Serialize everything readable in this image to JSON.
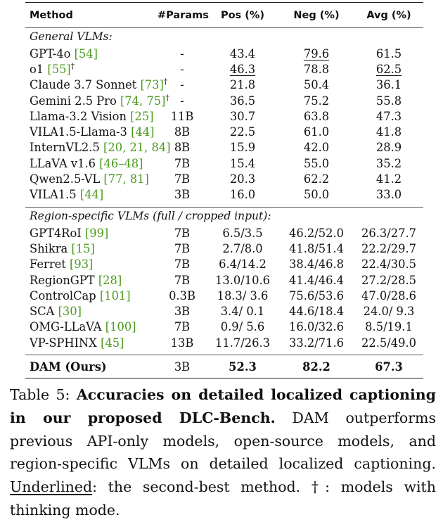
{
  "table": {
    "headers": [
      "Method",
      "#Params",
      "Pos (%)",
      "Neg (%)",
      "Avg (%)"
    ],
    "sections": [
      {
        "title": "General VLMs:",
        "rows": [
          {
            "name": "GPT-4o",
            "cites": "[54]",
            "dagger": "",
            "params": "-",
            "pos": "43.4",
            "neg": "79.6",
            "avg": "61.5",
            "u": "neg"
          },
          {
            "name": "o1",
            "cites": "[55]",
            "dagger": "†",
            "params": "-",
            "pos": "46.3",
            "neg": "78.8",
            "avg": "62.5",
            "u": "pos avg"
          },
          {
            "name": "Claude 3.7 Sonnet",
            "cites": "[73]",
            "dagger": "†",
            "params": "-",
            "pos": "21.8",
            "neg": "50.4",
            "avg": "36.1",
            "u": ""
          },
          {
            "name": "Gemini 2.5 Pro",
            "cites": "[74, 75]",
            "dagger": "†",
            "params": "-",
            "pos": "36.5",
            "neg": "75.2",
            "avg": "55.8",
            "u": ""
          },
          {
            "name": "Llama-3.2 Vision",
            "cites": "[25]",
            "dagger": "",
            "params": "11B",
            "pos": "30.7",
            "neg": "63.8",
            "avg": "47.3",
            "u": ""
          },
          {
            "name": "VILA1.5-Llama-3",
            "cites": "[44]",
            "dagger": "",
            "params": "8B",
            "pos": "22.5",
            "neg": "61.0",
            "avg": "41.8",
            "u": ""
          },
          {
            "name": "InternVL2.5",
            "cites": "[20, 21, 84]",
            "dagger": "",
            "params": "8B",
            "pos": "15.9",
            "neg": "42.0",
            "avg": "28.9",
            "u": ""
          },
          {
            "name": "LLaVA v1.6",
            "cites": "[46–48]",
            "dagger": "",
            "params": "7B",
            "pos": "15.4",
            "neg": "55.0",
            "avg": "35.2",
            "u": ""
          },
          {
            "name": "Qwen2.5-VL",
            "cites": "[77, 81]",
            "dagger": "",
            "params": "7B",
            "pos": "20.3",
            "neg": "62.2",
            "avg": "41.2",
            "u": ""
          },
          {
            "name": "VILA1.5",
            "cites": "[44]",
            "dagger": "",
            "params": "3B",
            "pos": "16.0",
            "neg": "50.0",
            "avg": "33.0",
            "u": ""
          }
        ]
      },
      {
        "title": "Region-specific VLMs (full / cropped input):",
        "rows": [
          {
            "name": "GPT4RoI",
            "cites": "[99]",
            "dagger": "",
            "params": "7B",
            "pos": "6.5/3.5",
            "neg": "46.2/52.0",
            "avg": "26.3/27.7",
            "u": ""
          },
          {
            "name": "Shikra",
            "cites": "[15]",
            "dagger": "",
            "params": "7B",
            "pos": "2.7/8.0",
            "neg": "41.8/51.4",
            "avg": "22.2/29.7",
            "u": ""
          },
          {
            "name": "Ferret",
            "cites": "[93]",
            "dagger": "",
            "params": "7B",
            "pos": "6.4/14.2",
            "neg": "38.4/46.8",
            "avg": "22.4/30.5",
            "u": ""
          },
          {
            "name": "RegionGPT",
            "cites": "[28]",
            "dagger": "",
            "params": "7B",
            "pos": "13.0/10.6",
            "neg": "41.4/46.4",
            "avg": "27.2/28.5",
            "u": ""
          },
          {
            "name": "ControlCap",
            "cites": "[101]",
            "dagger": "",
            "params": "0.3B",
            "pos": "18.3/ 3.6",
            "neg": "75.6/53.6",
            "avg": "47.0/28.6",
            "u": ""
          },
          {
            "name": "SCA",
            "cites": "[30]",
            "dagger": "",
            "params": "3B",
            "pos": "3.4/ 0.1",
            "neg": "44.6/18.4",
            "avg": "24.0/ 9.3",
            "u": ""
          },
          {
            "name": "OMG-LLaVA",
            "cites": "[100]",
            "dagger": "",
            "params": "7B",
            "pos": "0.9/ 5.6",
            "neg": "16.0/32.6",
            "avg": "8.5/19.1",
            "u": ""
          },
          {
            "name": "VP-SPHINX",
            "cites": "[45]",
            "dagger": "",
            "params": "13B",
            "pos": "11.7/26.3",
            "neg": "33.2/71.6",
            "avg": "22.5/49.0",
            "u": ""
          }
        ]
      }
    ],
    "ours": {
      "name": "DAM (Ours)",
      "params": "3B",
      "pos": "52.3",
      "neg": "82.2",
      "avg": "67.3"
    }
  },
  "caption": {
    "label": "Table 5: ",
    "title": "Accuracies on detailed localized captioning in our proposed DLC-Bench.",
    "body": " DAM outperforms previous API-only models, open-source models, and region-specific VLMs on detailed localized captioning. ",
    "underlined_word": "Underlined",
    "rest": ": the second-best method. †: models with thinking mode."
  }
}
